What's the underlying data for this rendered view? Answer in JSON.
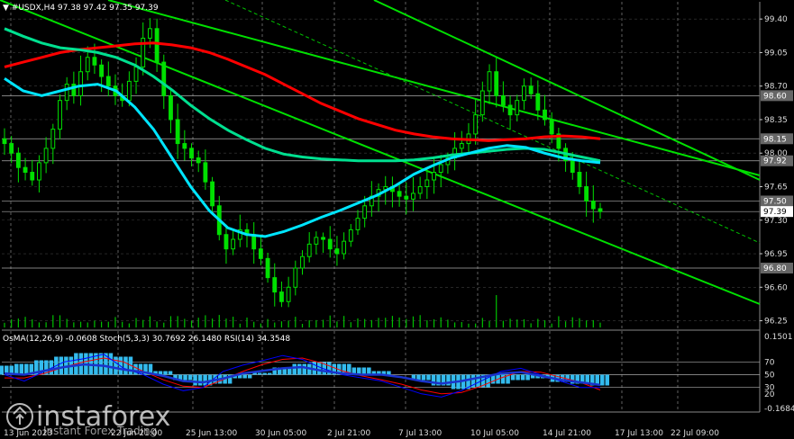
{
  "header": {
    "symbol_line": "▼ #USDX,H4  97.38 97.42 97.35 97.39"
  },
  "chart_data": {
    "type": "candlestick",
    "symbol": "#USDX",
    "timeframe": "H4",
    "ohlc": [
      97.38,
      97.42,
      97.35,
      97.39
    ],
    "ylim": [
      96.18,
      99.58
    ],
    "price_ticks": [
      "99.40",
      "99.05",
      "98.70",
      "98.35",
      "98.00",
      "97.65",
      "97.30",
      "96.95",
      "96.60",
      "96.25"
    ],
    "price_tick_values": [
      99.4,
      99.05,
      98.7,
      98.35,
      98.0,
      97.65,
      97.3,
      96.95,
      96.6,
      96.25
    ],
    "price_badges": [
      {
        "label": "98.60",
        "value": 98.6
      },
      {
        "label": "98.15",
        "value": 98.15
      },
      {
        "label": "97.92",
        "value": 97.92
      },
      {
        "label": "97.50",
        "value": 97.5
      },
      {
        "label": "97.39",
        "value": 97.39,
        "current": true
      },
      {
        "label": "96.80",
        "value": 96.8
      }
    ],
    "time_labels": [
      "13 Jun 2023",
      "22 Jun 21:00",
      "25 Jun 13:00",
      "30 Jun 05:00",
      "2 Jul 21:00",
      "7 Jul 13:00",
      "10 Jul 05:00",
      "14 Jul 21:00",
      "17 Jul 13:00",
      "22 Jul 09:00"
    ],
    "close_series": [
      98.1,
      98.0,
      97.85,
      97.8,
      97.72,
      97.9,
      98.05,
      98.25,
      98.55,
      98.72,
      98.6,
      98.85,
      99.0,
      98.92,
      98.8,
      98.7,
      98.6,
      98.55,
      98.75,
      98.9,
      99.2,
      99.3,
      98.95,
      98.6,
      98.35,
      98.1,
      98.05,
      97.95,
      97.9,
      97.7,
      97.45,
      97.15,
      97.0,
      97.1,
      97.2,
      97.15,
      97.0,
      96.9,
      96.7,
      96.55,
      96.45,
      96.6,
      96.8,
      96.92,
      97.05,
      97.12,
      97.1,
      97.0,
      96.95,
      97.08,
      97.2,
      97.32,
      97.45,
      97.55,
      97.62,
      97.65,
      97.6,
      97.55,
      97.52,
      97.58,
      97.65,
      97.72,
      97.8,
      97.88,
      97.95,
      98.05,
      98.1,
      98.2,
      98.4,
      98.65,
      98.85,
      98.6,
      98.5,
      98.4,
      98.55,
      98.7,
      98.62,
      98.45,
      98.35,
      98.2,
      98.05,
      97.92,
      97.8,
      97.65,
      97.5,
      97.42,
      97.39
    ],
    "moving_averages": [
      {
        "color": "#ff0000",
        "values": [
          98.9,
          98.95,
          99.0,
          99.05,
          99.08,
          99.1,
          99.12,
          99.14,
          99.15,
          99.13,
          99.1,
          99.05,
          98.98,
          98.9,
          98.82,
          98.72,
          98.62,
          98.52,
          98.44,
          98.36,
          98.3,
          98.24,
          98.2,
          98.17,
          98.15,
          98.14,
          98.13,
          98.14,
          98.15,
          98.17,
          98.18,
          98.17,
          98.15
        ]
      },
      {
        "color": "#00e090",
        "values": [
          99.3,
          99.22,
          99.15,
          99.1,
          99.08,
          99.05,
          99.0,
          98.92,
          98.8,
          98.66,
          98.5,
          98.36,
          98.24,
          98.14,
          98.05,
          97.99,
          97.96,
          97.94,
          97.93,
          97.92,
          97.92,
          97.92,
          97.93,
          97.95,
          97.98,
          98.0,
          98.02,
          98.04,
          98.05,
          98.04,
          98.0,
          97.96,
          97.92
        ]
      },
      {
        "color": "#00e5ff",
        "values": [
          98.78,
          98.65,
          98.6,
          98.65,
          98.7,
          98.72,
          98.65,
          98.48,
          98.25,
          97.95,
          97.65,
          97.4,
          97.22,
          97.15,
          97.13,
          97.18,
          97.25,
          97.33,
          97.4,
          97.48,
          97.56,
          97.66,
          97.78,
          97.87,
          97.95,
          98.0,
          98.05,
          98.08,
          98.06,
          98.0,
          97.95,
          97.92,
          97.9
        ]
      }
    ],
    "oscillator": {
      "title": "OsMA(12,26,9) -0.0608  Stoch(5,3,3) 30.7692 26.1480  RSI(14) 34.3548",
      "ticks": [
        "0.1501",
        "70",
        "50",
        "30",
        "20",
        "-0.1684"
      ],
      "tick_values": [
        0.1501,
        70,
        50,
        30,
        20,
        -0.1684
      ],
      "levels": [
        70,
        50,
        30
      ],
      "stoch_k": [
        50,
        40,
        55,
        70,
        75,
        82,
        60,
        50,
        35,
        25,
        30,
        55,
        65,
        72,
        80,
        74,
        60,
        50,
        45,
        40,
        30,
        20,
        15,
        25,
        40,
        55,
        60,
        50,
        40,
        30,
        30
      ],
      "stoch_d": [
        45,
        45,
        52,
        62,
        70,
        76,
        70,
        55,
        42,
        32,
        30,
        42,
        55,
        66,
        74,
        76,
        68,
        56,
        48,
        42,
        35,
        26,
        20,
        22,
        32,
        45,
        55,
        54,
        46,
        38,
        26
      ],
      "rsi": [
        52,
        50,
        56,
        62,
        66,
        64,
        58,
        54,
        48,
        40,
        38,
        44,
        52,
        56,
        60,
        62,
        56,
        52,
        50,
        50,
        46,
        40,
        36,
        40,
        46,
        52,
        54,
        48,
        42,
        38,
        34
      ],
      "osma": [
        0.05,
        0.06,
        0.08,
        0.1,
        0.12,
        0.12,
        0.1,
        0.06,
        0.02,
        -0.03,
        -0.06,
        -0.05,
        -0.02,
        0.01,
        0.04,
        0.06,
        0.07,
        0.06,
        0.04,
        0.02,
        0.0,
        -0.03,
        -0.06,
        -0.08,
        -0.07,
        -0.05,
        -0.03,
        -0.02,
        -0.04,
        -0.05,
        -0.06
      ]
    }
  },
  "branding": {
    "logo_text": "instaforex",
    "logo_sub": "Instant Forex Trading",
    "logo_icon": "instaforex-logo-icon"
  },
  "colors": {
    "background": "#000000",
    "candle": "#00e000",
    "volume": "#00c000",
    "channel": "#00e000",
    "grid": "#7a7a7a",
    "price_badge_bg": "#666666",
    "current_badge_bg": "#ffffff",
    "osma_bars": "#33bbee",
    "stoch_main": "#0000ff",
    "stoch_signal": "#ff0000",
    "rsi_line": "#1a33cc"
  }
}
